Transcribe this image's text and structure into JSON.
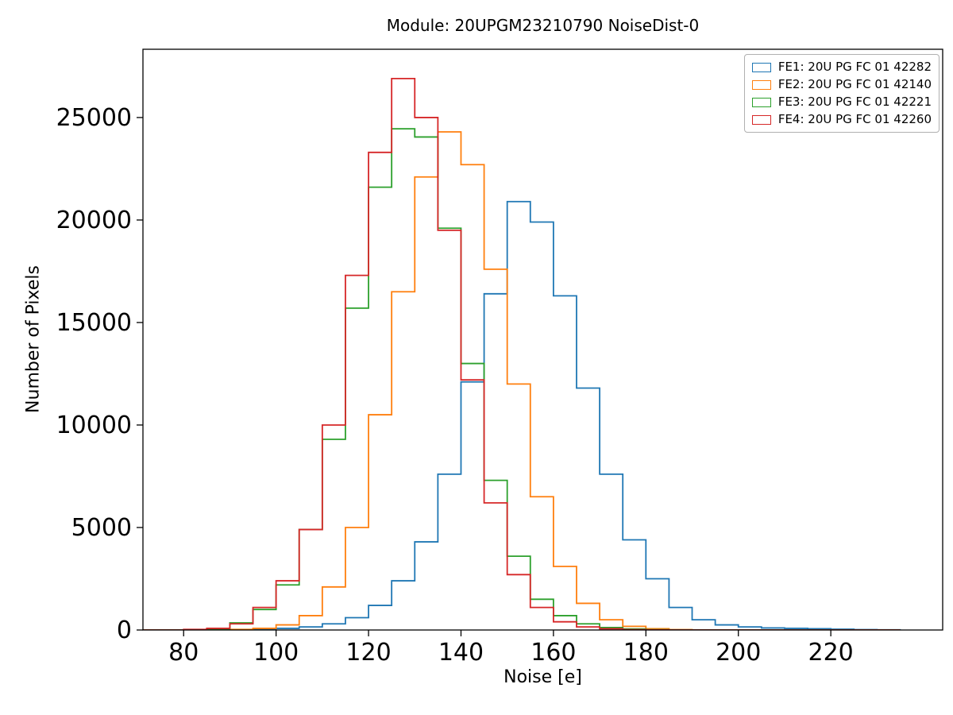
{
  "chart_data": {
    "type": "line",
    "style": "step-histogram",
    "title": "Module: 20UPGM23210790 NoiseDist-0",
    "xlabel": "Noise [e]",
    "ylabel": "Number of Pixels",
    "grid": false,
    "legend_position": "upper right",
    "xlim": [
      71.2,
      244.2
    ],
    "ylim": [
      0,
      28330
    ],
    "xticks": [
      80,
      100,
      120,
      140,
      160,
      180,
      200,
      220
    ],
    "yticks": [
      0,
      5000,
      10000,
      15000,
      20000,
      25000
    ],
    "bin_edges": [
      70,
      75,
      80,
      85,
      90,
      95,
      100,
      105,
      110,
      115,
      120,
      125,
      130,
      135,
      140,
      145,
      150,
      155,
      160,
      165,
      170,
      175,
      180,
      185,
      190,
      195,
      200,
      205,
      210,
      215,
      220,
      225,
      230,
      235
    ],
    "series": [
      {
        "name": "FE1: 20U PG FC 01 42282",
        "color": "#1f77b4",
        "values": [
          0,
          0,
          0,
          0,
          20,
          40,
          80,
          150,
          300,
          600,
          1200,
          2400,
          4300,
          7600,
          12100,
          16400,
          20900,
          19900,
          16300,
          11800,
          7600,
          4400,
          2500,
          1100,
          500,
          250,
          150,
          100,
          80,
          60,
          40,
          20,
          10
        ]
      },
      {
        "name": "FE2: 20U PG FC 01 42140",
        "color": "#ff7f0e",
        "values": [
          0,
          0,
          0,
          0,
          30,
          80,
          250,
          700,
          2100,
          5000,
          10500,
          16500,
          22100,
          24300,
          22700,
          17600,
          12000,
          6500,
          3100,
          1300,
          500,
          180,
          60,
          20,
          5,
          0,
          0,
          0,
          0,
          0,
          0,
          0,
          0
        ]
      },
      {
        "name": "FE3: 20U PG FC 01 42221",
        "color": "#2ca02c",
        "values": [
          0,
          0,
          10,
          50,
          350,
          1000,
          2200,
          4900,
          9300,
          15700,
          21600,
          24450,
          24050,
          19600,
          13000,
          7300,
          3600,
          1500,
          700,
          300,
          120,
          50,
          15,
          0,
          0,
          0,
          0,
          0,
          0,
          0,
          0,
          0,
          0
        ]
      },
      {
        "name": "FE4: 20U PG FC 01 42260",
        "color": "#d62728",
        "values": [
          0,
          0,
          30,
          80,
          300,
          1100,
          2400,
          4900,
          10000,
          17300,
          23300,
          26900,
          25000,
          19500,
          12200,
          6200,
          2700,
          1100,
          400,
          150,
          60,
          20,
          5,
          0,
          0,
          0,
          0,
          0,
          0,
          0,
          0,
          0,
          0
        ]
      }
    ]
  }
}
